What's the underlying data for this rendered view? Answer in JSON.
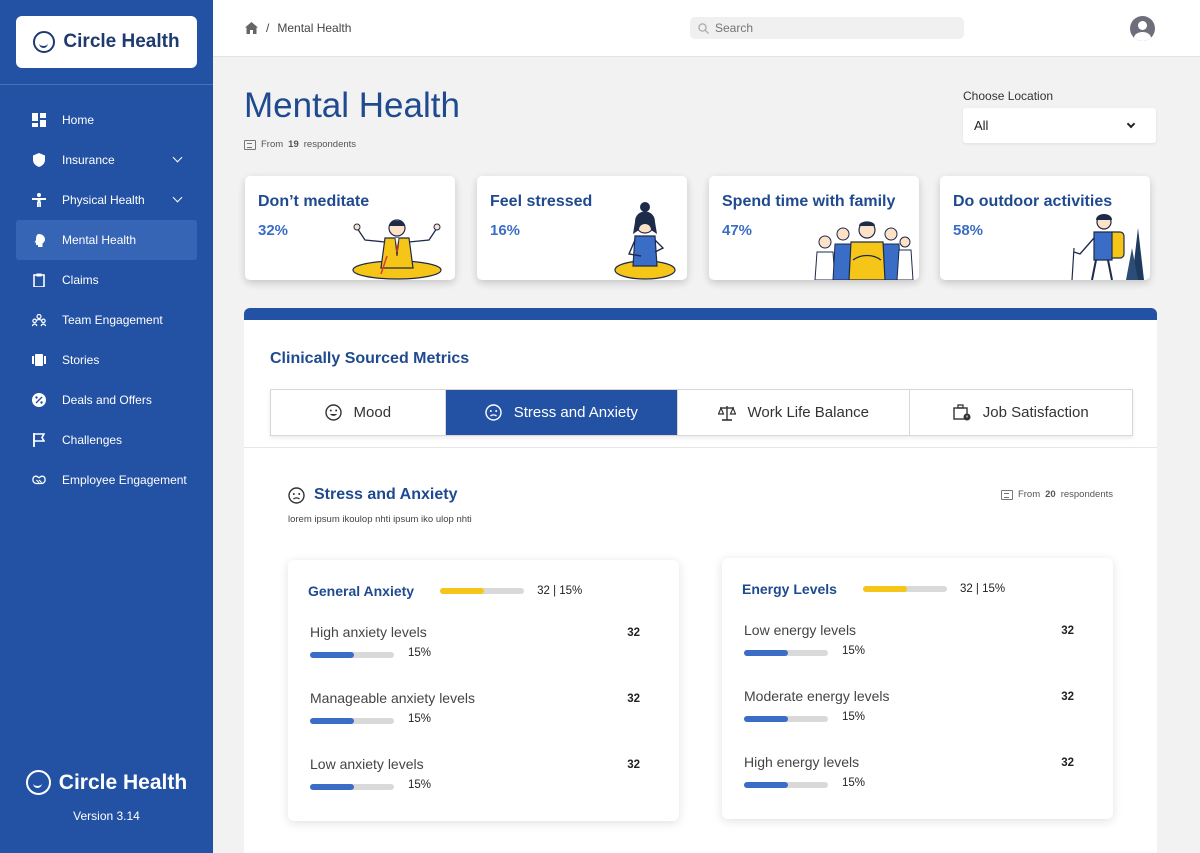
{
  "app": {
    "name": "Circle Health",
    "version": "Version 3.14"
  },
  "sidebar": {
    "items": [
      {
        "label": "Home",
        "icon": "dashboard-icon",
        "active": false,
        "expandable": false
      },
      {
        "label": "Insurance",
        "icon": "shield-icon",
        "active": false,
        "expandable": true
      },
      {
        "label": "Physical Health",
        "icon": "person-icon",
        "active": false,
        "expandable": true
      },
      {
        "label": "Mental Health",
        "icon": "brain-icon",
        "active": true,
        "expandable": false
      },
      {
        "label": "Claims",
        "icon": "clipboard-icon",
        "active": false,
        "expandable": false
      },
      {
        "label": "Team Engagement",
        "icon": "team-icon",
        "active": false,
        "expandable": false
      },
      {
        "label": "Stories",
        "icon": "stories-icon",
        "active": false,
        "expandable": false
      },
      {
        "label": "Deals and Offers",
        "icon": "discount-icon",
        "active": false,
        "expandable": false
      },
      {
        "label": "Challenges",
        "icon": "flag-icon",
        "active": false,
        "expandable": false
      },
      {
        "label": "Employee Engagement",
        "icon": "handshake-icon",
        "active": false,
        "expandable": false
      }
    ]
  },
  "topbar": {
    "breadcrumb": {
      "separator": "/",
      "current": "Mental Health"
    },
    "search": {
      "placeholder": "Search"
    }
  },
  "header": {
    "title": "Mental Health",
    "respondents": {
      "prefix": "From",
      "count": "19",
      "suffix": "respondents"
    },
    "location": {
      "label": "Choose Location",
      "selected": "All"
    }
  },
  "stats": [
    {
      "label": "Don’t meditate",
      "value": "32%"
    },
    {
      "label": "Feel stressed",
      "value": "16%"
    },
    {
      "label": "Spend time with family",
      "value": "47%"
    },
    {
      "label": "Do outdoor activities",
      "value": "58%"
    }
  ],
  "metrics": {
    "title": "Clinically Sourced Metrics",
    "tabs": [
      {
        "label": "Mood",
        "icon": "smile-icon",
        "active": false
      },
      {
        "label": "Stress and Anxiety",
        "icon": "anxious-face-icon",
        "active": true
      },
      {
        "label": "Work Life Balance",
        "icon": "scale-icon",
        "active": false
      },
      {
        "label": "Job Satisfaction",
        "icon": "briefcase-icon",
        "active": false
      }
    ],
    "section": {
      "title": "Stress and Anxiety",
      "description": "lorem ipsum ikoulop nhti ipsum iko ulop nhti",
      "respondents": {
        "prefix": "From",
        "count": "20",
        "suffix": "respondents"
      }
    },
    "cards": [
      {
        "name": "General Anxiety",
        "summary": "32 | 15%",
        "fill": 0.52,
        "rows": [
          {
            "label": "High anxiety levels",
            "count": "32",
            "pct": "15%",
            "fill": 0.52
          },
          {
            "label": "Manageable anxiety levels",
            "count": "32",
            "pct": "15%",
            "fill": 0.52
          },
          {
            "label": "Low anxiety levels",
            "count": "32",
            "pct": "15%",
            "fill": 0.52
          }
        ]
      },
      {
        "name": "Energy Levels",
        "summary": "32 | 15%",
        "fill": 0.52,
        "rows": [
          {
            "label": "Low energy levels",
            "count": "32",
            "pct": "15%",
            "fill": 0.52
          },
          {
            "label": "Moderate energy levels",
            "count": "32",
            "pct": "15%",
            "fill": 0.52
          },
          {
            "label": "High energy levels",
            "count": "32",
            "pct": "15%",
            "fill": 0.52
          }
        ]
      }
    ]
  },
  "colors": {
    "sidebar": "#2352a5",
    "accent": "#1f4a8f",
    "bar_blue": "#3a6ec6",
    "bar_yellow": "#f5c518"
  }
}
